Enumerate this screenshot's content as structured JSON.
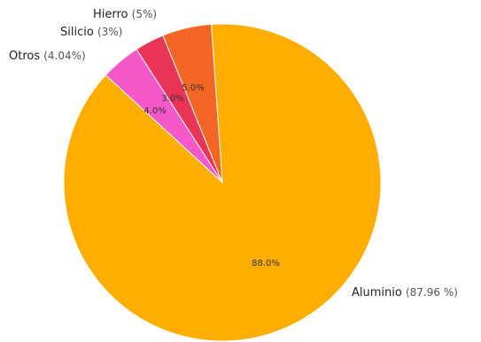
{
  "chart_data": {
    "type": "pie",
    "slices": [
      {
        "label": "Aluminio",
        "pct_text": "(87.96 %)",
        "value": 87.96,
        "data_label": "88.0%",
        "color": "#FFAE00"
      },
      {
        "label": "Otros",
        "pct_text": "(4.04%)",
        "value": 4.04,
        "data_label": "4.0%",
        "color": "#F558C8"
      },
      {
        "label": "Silicio",
        "pct_text": "(3%)",
        "value": 3.0,
        "data_label": "3.0%",
        "color": "#EA3455"
      },
      {
        "label": "Hierro",
        "pct_text": "(5%)",
        "value": 5.0,
        "data_label": "5.0%",
        "color": "#F26522"
      }
    ],
    "start_angle_deg": 0,
    "direction": "clockwise"
  }
}
